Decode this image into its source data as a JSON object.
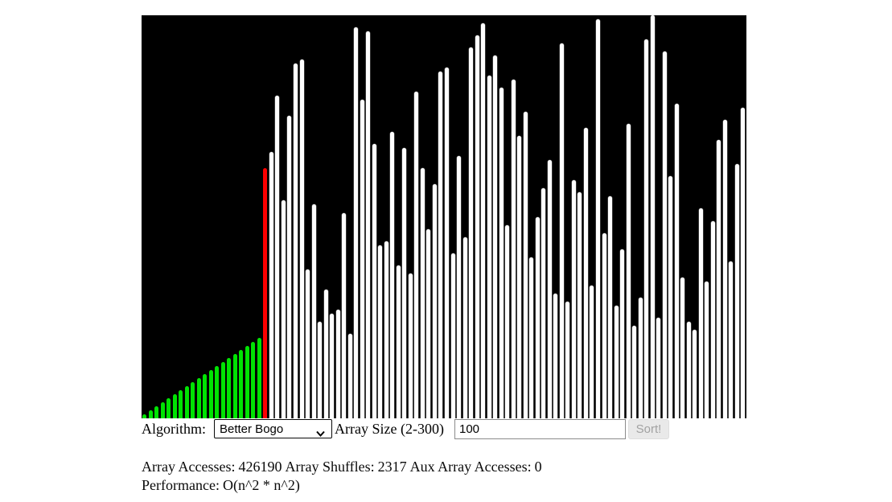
{
  "visualizer": {
    "background": "#000000",
    "bar_colors": {
      "sorted": "#00e302",
      "active": "#ff0000",
      "unsorted": "#ffffff"
    },
    "sorted_count": 20,
    "active_index": 20,
    "value_range": [
      1,
      100
    ],
    "values": [
      1,
      2,
      3,
      4,
      5,
      6,
      7,
      8,
      9,
      10,
      11,
      12,
      13,
      14,
      15,
      16,
      17,
      18,
      19,
      20,
      62,
      66,
      80,
      54,
      75,
      88,
      89,
      37,
      53,
      24,
      32,
      26,
      27,
      51,
      21,
      97,
      79,
      96,
      68,
      43,
      44,
      71,
      38,
      67,
      36,
      81,
      62,
      47,
      58,
      86,
      87,
      41,
      65,
      45,
      92,
      95,
      98,
      85,
      90,
      82,
      48,
      84,
      70,
      76,
      40,
      50,
      57,
      64,
      31,
      93,
      29,
      59,
      56,
      72,
      33,
      99,
      46,
      55,
      28,
      42,
      73,
      23,
      30,
      94,
      100,
      25,
      91,
      60,
      78,
      35,
      24,
      22,
      52,
      34,
      49,
      69,
      74,
      39,
      63,
      77
    ]
  },
  "controls": {
    "algorithm_label": "Algorithm:",
    "algorithm_value": "Better Bogo",
    "array_size_label": "Array Size (2-300)",
    "array_size_value": "100",
    "sort_button_label": "Sort!",
    "sort_button_state": "disabled"
  },
  "stats": {
    "array_accesses_label": "Array Accesses:",
    "array_accesses": "426190",
    "array_shuffles_label": "Array Shuffles:",
    "array_shuffles": "2317",
    "aux_accesses_label": "Aux Array Accesses:",
    "aux_accesses": "0",
    "performance_label": "Performance:",
    "performance": "O(n^2 * n^2)"
  }
}
